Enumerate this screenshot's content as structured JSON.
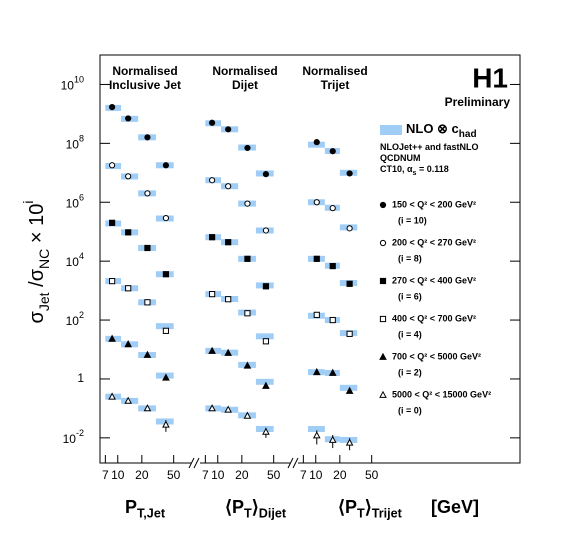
{
  "chart_data": {
    "type": "scatter",
    "title": "H1",
    "subtitle": "Preliminary",
    "log_x": true,
    "log_y": true,
    "ylabel": [
      "σ",
      "Jet",
      " /σ",
      "NC",
      " × 10",
      "i"
    ],
    "ylim": [
      0.0014,
      100000000000
    ],
    "yticks": [
      {
        "value": 0.01,
        "label": [
          "10",
          "-2"
        ]
      },
      1,
      {
        "value": 100,
        "label": [
          "10",
          "2"
        ]
      },
      {
        "value": 10000,
        "label": [
          "10",
          "4"
        ]
      },
      {
        "value": 1000000,
        "label": [
          "10",
          "6"
        ]
      },
      {
        "value": 100000000,
        "label": [
          "10",
          "8"
        ]
      },
      {
        "value": 10000000000,
        "label": [
          "10",
          "10"
        ]
      }
    ],
    "band_color": "#9fcdf5",
    "band_label": [
      "NLO ⊗ c",
      "had"
    ],
    "notes": [
      [
        "NLOJet++ and fastNLO"
      ],
      [
        "QCDNUM"
      ],
      [
        "CT10, α",
        "s",
        " = 0.118"
      ]
    ],
    "x_unit": "[GeV]",
    "legend": [
      {
        "name": "150 < Q² <  200 GeV²",
        "sub": "(i = 10)",
        "marker": "circle-filled",
        "color": "#000000"
      },
      {
        "name": "200 < Q² <  270 GeV²",
        "sub": "(i = 8)",
        "marker": "circle-open",
        "color": "#000000"
      },
      {
        "name": "270 < Q² <  400 GeV²",
        "sub": "(i = 6)",
        "marker": "square-filled",
        "color": "#000000"
      },
      {
        "name": "400 < Q² <  700 GeV²",
        "sub": "(i = 4)",
        "marker": "square-open",
        "color": "#000000"
      },
      {
        "name": "700 < Q² < 5000 GeV²",
        "sub": "(i = 2)",
        "marker": "triangle-filled",
        "color": "#000000"
      },
      {
        "name": "5000 < Q² < 15000 GeV²",
        "sub": "(i = 0)",
        "marker": "triangle-open",
        "color": "#000000"
      }
    ],
    "panels": [
      {
        "header": [
          "Normalised",
          "Inclusive Jet"
        ],
        "xlabel": [
          "P",
          "T,Jet"
        ],
        "xlim": [
          6,
          80
        ],
        "xticks": [
          7,
          10,
          20,
          50
        ],
        "x": [
          8.5,
          13.5,
          23.5,
          40
        ],
        "bins": [
          7,
          11,
          18,
          30,
          50
        ],
        "series": [
          {
            "values": [
              1700000000,
              700000000,
              160000000,
              18000000
            ],
            "nlo": [
              1600000000,
              680000000,
              160000000,
              18000000
            ]
          },
          {
            "values": [
              18000000,
              7600000,
              2000000,
              290000
            ],
            "nlo": [
              17000000,
              7500000,
              2000000,
              280000
            ]
          },
          {
            "values": [
              200000,
              95000,
              28000,
              3600
            ],
            "nlo": [
              190000,
              95000,
              28000,
              3600
            ]
          },
          {
            "values": [
              2100,
              1200,
              400,
              43
            ],
            "nlo": [
              2100,
              1200,
              400,
              62
            ]
          },
          {
            "values": [
              23,
              15,
              6.5,
              1.1
            ],
            "nlo": [
              23,
              15,
              6.5,
              1.3
            ]
          },
          {
            "values": [
              0.25,
              0.18,
              0.1,
              0.028
            ],
            "nlo": [
              0.25,
              0.18,
              0.1,
              0.036
            ],
            "errors": [
              0.02,
              0.015,
              0.01,
              0.012
            ]
          }
        ]
      },
      {
        "header": [
          "Normalised",
          "Dijet"
        ],
        "xlabel": [
          "⟨P",
          "T",
          "⟩",
          "Dijet"
        ],
        "xlim": [
          6,
          80
        ],
        "xticks": [
          7,
          10,
          20,
          50
        ],
        "x": [
          8.5,
          13.5,
          23.5,
          40
        ],
        "bins": [
          7,
          11,
          18,
          30,
          50
        ],
        "series": [
          {
            "values": [
              500000000,
              300000000,
              70000000,
              9000000
            ],
            "nlo": [
              480000000,
              300000000,
              72000000,
              9500000
            ]
          },
          {
            "values": [
              5600000,
              3500000,
              900000,
              110000
            ],
            "nlo": [
              5600000,
              3500000,
              900000,
              110000
            ]
          },
          {
            "values": [
              65000,
              44000,
              12000,
              1400
            ],
            "nlo": [
              65000,
              44000,
              12000,
              1500
            ]
          },
          {
            "values": [
              760,
              510,
              170,
              19
            ],
            "nlo": [
              760,
              520,
              180,
              28
            ]
          },
          {
            "values": [
              8.9,
              7.6,
              2.8,
              0.58
            ],
            "nlo": [
              9,
              7.8,
              3,
              0.8
            ]
          },
          {
            "values": [
              0.1,
              0.09,
              0.056,
              0.016
            ],
            "nlo": [
              0.1,
              0.09,
              0.058,
              0.02
            ],
            "errors": [
              0.008,
              0.007,
              0.005,
              0.006
            ]
          }
        ]
      },
      {
        "header": [
          "Normalised",
          "Trijet"
        ],
        "xlabel": [
          "⟨P",
          "T",
          "⟩",
          "Trijet"
        ],
        "xlim": [
          6,
          80
        ],
        "xticks": [
          7,
          10,
          20,
          50
        ],
        "x": [
          10.3,
          16.3,
          26.5
        ],
        "bins": [
          8,
          13,
          20,
          33
        ],
        "series": [
          {
            "values": [
              110000000,
              54000000,
              9500000
            ],
            "nlo": [
              90000000,
              55000000,
              10000000
            ]
          },
          {
            "values": [
              1000000,
              630000,
              130000
            ],
            "nlo": [
              1000000,
              650000,
              140000
            ]
          },
          {
            "values": [
              12000,
              6800,
              1700
            ],
            "nlo": [
              12000,
              7000,
              1800
            ]
          },
          {
            "values": [
              150,
              100,
              34
            ],
            "nlo": [
              140,
              100,
              36
            ]
          },
          {
            "values": [
              1.7,
              1.6,
              0.39
            ],
            "nlo": [
              1.7,
              1.6,
              0.5
            ]
          },
          {
            "values": [
              0.012,
              0.0085,
              0.0068
            ],
            "nlo": [
              0.02,
              0.009,
              0.0085
            ],
            "errors": [
              0.006,
              0.004,
              0.003
            ]
          }
        ]
      }
    ]
  }
}
